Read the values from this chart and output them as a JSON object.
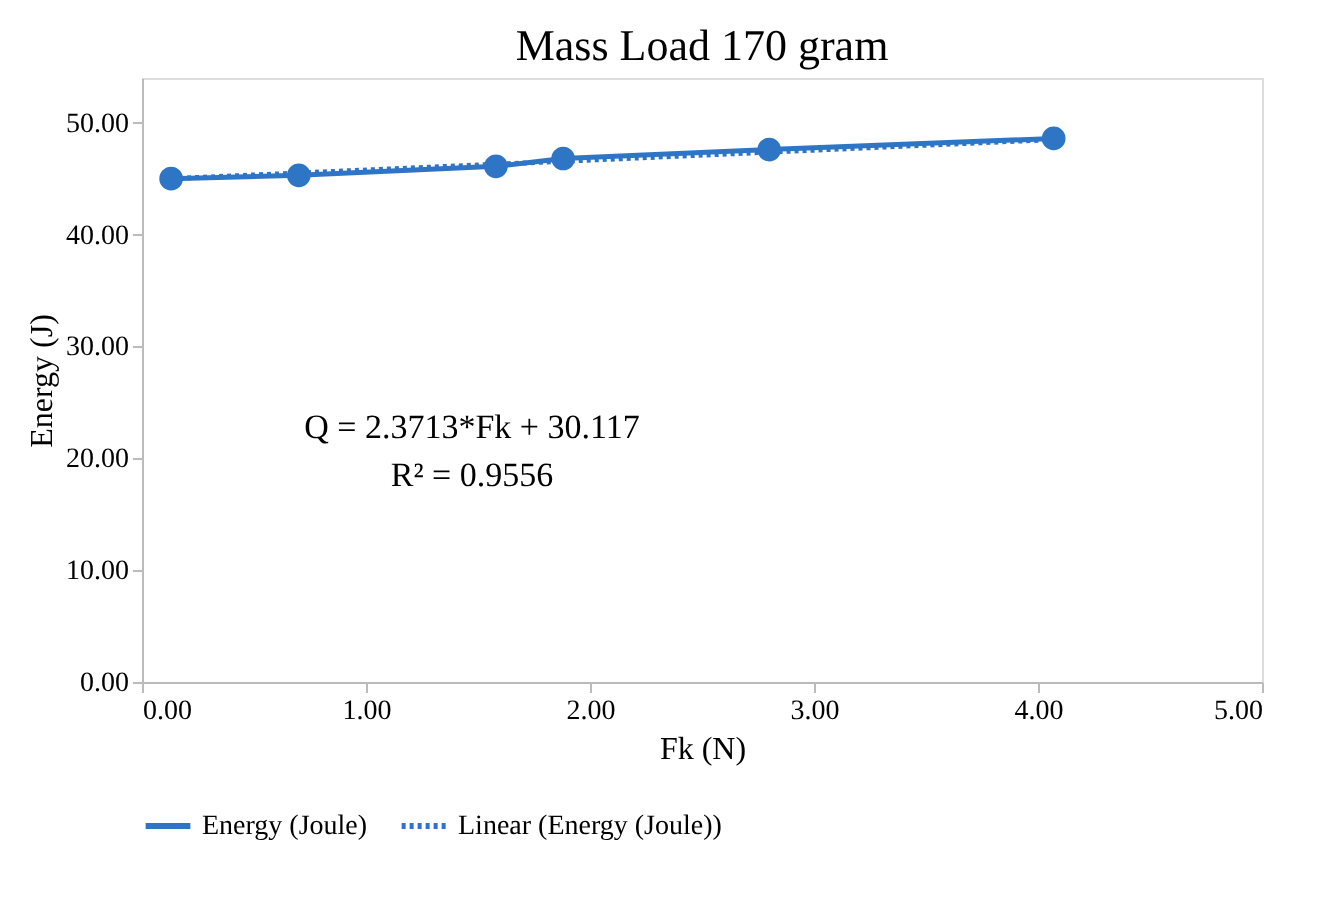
{
  "chart_data": {
    "type": "line",
    "title": "Mass Load 170 gram",
    "xlabel": "Fk (N)",
    "ylabel": "Energy (J)",
    "x": [
      0.13,
      0.7,
      1.58,
      1.88,
      2.8,
      4.07
    ],
    "series": [
      {
        "name": "Energy (Joule)",
        "color": "#2e75c6",
        "values": [
          45.0,
          45.3,
          46.1,
          46.8,
          47.6,
          48.6
        ],
        "marker": "circle",
        "line_style": "solid"
      },
      {
        "name": "Linear (Energy (Joule))",
        "type": "line",
        "color": "#2e75c6",
        "x": [
          0.13,
          4.07
        ],
        "values": [
          45.0,
          48.5
        ],
        "marker": "none",
        "line_style": "dotted"
      }
    ],
    "xlim": [
      0,
      5
    ],
    "xticks": [
      {
        "value": 0,
        "label": "0.00"
      },
      {
        "value": 1,
        "label": "1.00"
      },
      {
        "value": 2,
        "label": "2.00"
      },
      {
        "value": 3,
        "label": "3.00"
      },
      {
        "value": 4,
        "label": "4.00"
      },
      {
        "value": 5,
        "label": "5.00"
      }
    ],
    "ylim": [
      0,
      54
    ],
    "yticks": [
      {
        "value": 0,
        "label": "0.00"
      },
      {
        "value": 10,
        "label": "10.00"
      },
      {
        "value": 20,
        "label": "20.00"
      },
      {
        "value": 30,
        "label": "30.00"
      },
      {
        "value": 40,
        "label": "40.00"
      },
      {
        "value": 50,
        "label": "50.00"
      }
    ],
    "annotations": [
      "Q = 2.3713*Fk + 30.117",
      "R² = 0.9556"
    ],
    "grid": false,
    "legend": "bottom"
  }
}
